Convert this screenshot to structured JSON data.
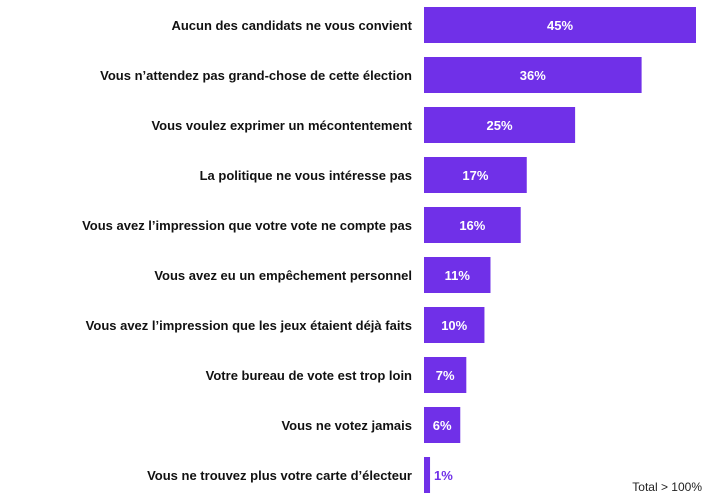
{
  "chart_data": {
    "type": "bar",
    "orientation": "horizontal",
    "categories": [
      "Aucun des candidats ne vous convient",
      "Vous n’attendez pas grand-chose de cette élection",
      "Vous voulez exprimer un mécontentement",
      "La politique ne vous intéresse pas",
      "Vous avez l’impression que votre vote ne compte pas",
      "Vous avez eu un empêchement personnel",
      "Vous avez l’impression que les jeux étaient déjà faits",
      "Votre bureau de vote est trop loin",
      "Vous ne votez jamais",
      "Vous ne trouvez plus votre carte d’électeur"
    ],
    "values": [
      45,
      36,
      25,
      17,
      16,
      11,
      10,
      7,
      6,
      1
    ],
    "value_labels": [
      "45%",
      "36%",
      "25%",
      "17%",
      "16%",
      "11%",
      "10%",
      "7%",
      "6%",
      "1%"
    ],
    "unit": "%",
    "xlim": [
      0,
      45
    ],
    "grid": false,
    "legend": "none",
    "bar_color": "#7030e8",
    "note": "Total > 100%"
  }
}
